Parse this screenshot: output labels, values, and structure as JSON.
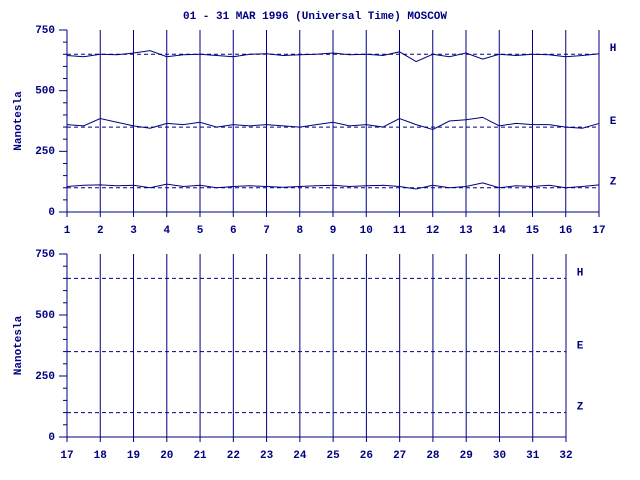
{
  "chart_data": [
    {
      "type": "line",
      "title": "01 - 31 MAR 1996 (Universal Time) MOSCOW",
      "ylabel": "Nanotesla",
      "x": [
        1,
        1.5,
        2,
        2.5,
        3,
        3.5,
        4,
        4.5,
        5,
        5.5,
        6,
        6.5,
        7,
        7.5,
        8,
        8.5,
        9,
        9.5,
        10,
        10.5,
        11,
        11.5,
        12,
        12.5,
        13,
        13.5,
        14,
        14.5,
        15,
        15.5,
        16,
        16.5,
        17
      ],
      "series": [
        {
          "name": "H",
          "color": "#000080",
          "baseline": 650,
          "values": [
            645,
            640,
            650,
            648,
            655,
            665,
            640,
            648,
            650,
            645,
            640,
            650,
            652,
            645,
            648,
            650,
            655,
            648,
            650,
            645,
            660,
            620,
            650,
            640,
            655,
            630,
            650,
            645,
            650,
            648,
            640,
            645,
            652
          ]
        },
        {
          "name": "E",
          "color": "#000080",
          "baseline": 350,
          "values": [
            360,
            355,
            385,
            370,
            355,
            345,
            365,
            360,
            370,
            350,
            360,
            355,
            360,
            355,
            350,
            360,
            370,
            355,
            360,
            350,
            385,
            360,
            340,
            375,
            380,
            390,
            355,
            365,
            360,
            360,
            350,
            345,
            365
          ]
        },
        {
          "name": "Z",
          "color": "#000080",
          "baseline": 100,
          "values": [
            105,
            110,
            112,
            108,
            110,
            100,
            115,
            105,
            110,
            100,
            105,
            108,
            105,
            102,
            105,
            108,
            110,
            105,
            108,
            110,
            105,
            95,
            110,
            100,
            105,
            120,
            100,
            108,
            105,
            110,
            100,
            105,
            112
          ]
        }
      ],
      "xlim": [
        1,
        17
      ],
      "xticks": [
        1,
        2,
        3,
        4,
        5,
        6,
        7,
        8,
        9,
        10,
        11,
        12,
        13,
        14,
        15,
        16,
        17
      ],
      "ylim": [
        0,
        750
      ],
      "yticks": [
        0,
        250,
        500,
        750
      ],
      "yminorticks": [
        50,
        100,
        150,
        200,
        300,
        350,
        400,
        450,
        550,
        600,
        650,
        700
      ],
      "grid": true
    },
    {
      "type": "line",
      "ylabel": "Nanotesla",
      "series": [
        {
          "name": "H",
          "color": "#000080",
          "baseline": 650
        },
        {
          "name": "E",
          "color": "#000080",
          "baseline": 350
        },
        {
          "name": "Z",
          "color": "#000080",
          "baseline": 100
        }
      ],
      "xlim": [
        17,
        32
      ],
      "xticks": [
        17,
        18,
        19,
        20,
        21,
        22,
        23,
        24,
        25,
        26,
        27,
        28,
        29,
        30,
        31,
        32
      ],
      "ylim": [
        0,
        750
      ],
      "yticks": [
        0,
        250,
        500,
        750
      ],
      "yminorticks": [
        50,
        100,
        150,
        200,
        300,
        350,
        400,
        450,
        550,
        600,
        650,
        700
      ],
      "grid": true
    }
  ]
}
